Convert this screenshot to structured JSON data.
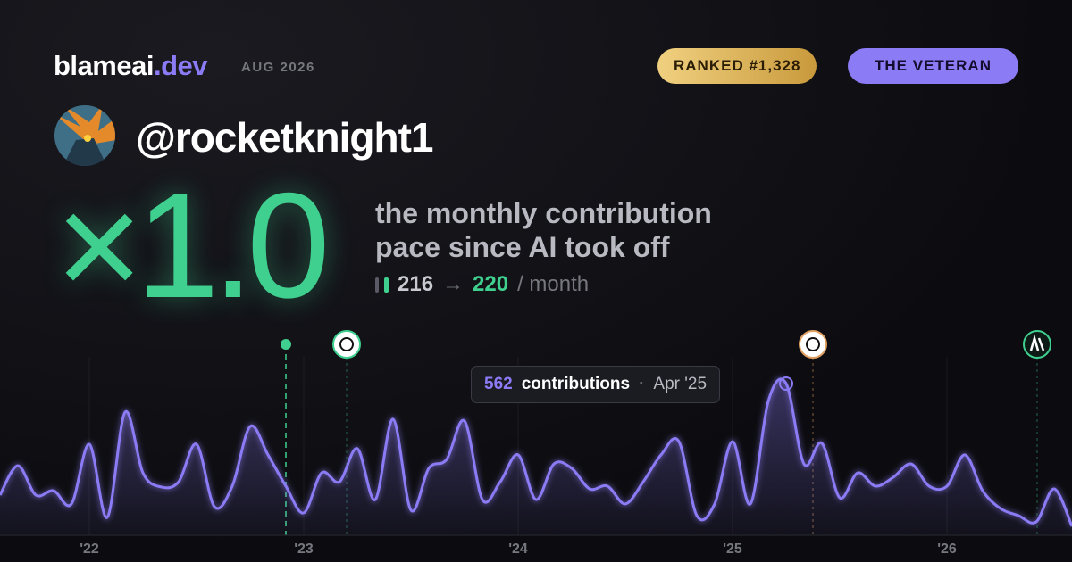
{
  "header": {
    "brand": "blameai",
    "brand_tld": ".dev",
    "date": "AUG 2026",
    "rank_badge": "RANKED #1,328",
    "title_badge": "THE VETERAN"
  },
  "profile": {
    "handle": "@rocketknight1"
  },
  "headline": {
    "multiplier": "×1.0",
    "caption": "the monthly contribution pace since AI took off",
    "before": 216,
    "arrow": "→",
    "after": 220,
    "unit": "/ month"
  },
  "tooltip": {
    "unit": "contributions",
    "separator": "·",
    "label": "Apr '25"
  },
  "chart_data": {
    "type": "area",
    "categories": [
      null,
      null,
      null,
      null,
      null,
      "'22",
      null,
      null,
      null,
      null,
      null,
      null,
      null,
      null,
      null,
      null,
      null,
      "'23",
      null,
      null,
      null,
      null,
      null,
      null,
      null,
      null,
      null,
      null,
      null,
      "'24",
      null,
      null,
      null,
      null,
      null,
      null,
      null,
      null,
      null,
      null,
      null,
      "'25",
      null,
      null,
      null,
      null,
      null,
      null,
      null,
      null,
      null,
      null,
      null,
      "'26",
      null,
      null,
      null,
      null,
      null,
      null,
      null
    ],
    "values": [
      149,
      258,
      149,
      165,
      116,
      337,
      66,
      456,
      231,
      179,
      198,
      337,
      106,
      182,
      403,
      298,
      182,
      83,
      231,
      198,
      321,
      132,
      430,
      93,
      248,
      281,
      423,
      132,
      198,
      298,
      132,
      264,
      248,
      172,
      182,
      116,
      198,
      298,
      347,
      73,
      116,
      347,
      116,
      496,
      562,
      264,
      341,
      139,
      231,
      182,
      215,
      264,
      182,
      182,
      298,
      165,
      99,
      73,
      50,
      172,
      33
    ],
    "color": "#8b7cf6"
  }
}
